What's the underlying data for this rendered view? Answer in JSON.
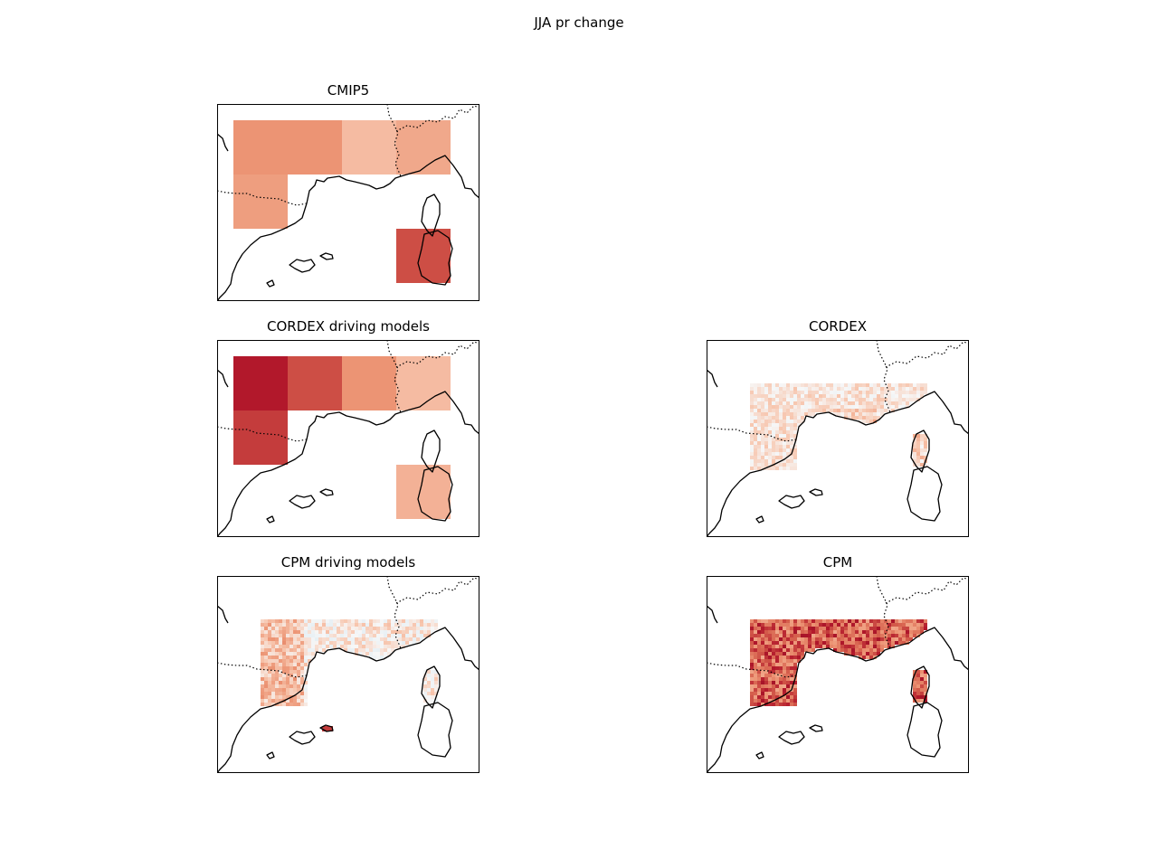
{
  "figure": {
    "title": "JJA pr change",
    "colors": {
      "background": "#ffffff",
      "coastline": "#000000",
      "frame": "#000000",
      "cmap_pos_light": "#f7c5ad",
      "cmap_pos_mid": "#ec9474",
      "cmap_pos_strong": "#d6604d",
      "cmap_pos_max": "#b2182b",
      "cmap_neg_light": "#d1e5f0",
      "cmap_neg_mid": "#4393c3"
    }
  },
  "panels": [
    {
      "id": "cmip5",
      "title": "CMIP5",
      "style": "blocks",
      "cells": [
        {
          "col": 0,
          "row": 0,
          "level": 0.55
        },
        {
          "col": 1,
          "row": 0,
          "level": 0.55
        },
        {
          "col": 2,
          "row": 0,
          "level": 0.35
        },
        {
          "col": 3,
          "row": 0,
          "level": 0.45
        },
        {
          "col": 0,
          "row": 1,
          "level": 0.5
        },
        {
          "col": 3,
          "row": 2,
          "level": 0.85
        }
      ]
    },
    {
      "id": "cordex-driving",
      "title": "CORDEX driving models",
      "style": "blocks",
      "cells": [
        {
          "col": 0,
          "row": 0,
          "level": 1.0
        },
        {
          "col": 1,
          "row": 0,
          "level": 0.85
        },
        {
          "col": 2,
          "row": 0,
          "level": 0.55
        },
        {
          "col": 3,
          "row": 0,
          "level": 0.35
        },
        {
          "col": 0,
          "row": 1,
          "level": 0.9
        },
        {
          "col": 3,
          "row": 2,
          "level": 0.4
        }
      ]
    },
    {
      "id": "cordex",
      "title": "CORDEX",
      "style": "field",
      "field": {
        "mean": 0.12,
        "noise": 0.18,
        "coast_boost": 0.2,
        "seed": 11
      }
    },
    {
      "id": "cpm-driving",
      "title": "CPM driving models",
      "style": "field",
      "field": {
        "mean": 0.08,
        "noise": 0.25,
        "west_boost": 0.25,
        "seed": 23,
        "hotspot": true
      }
    },
    {
      "id": "cpm",
      "title": "CPM",
      "style": "field",
      "field": {
        "mean": 0.75,
        "noise": 0.3,
        "seed": 37,
        "blue_spot": true
      }
    }
  ]
}
